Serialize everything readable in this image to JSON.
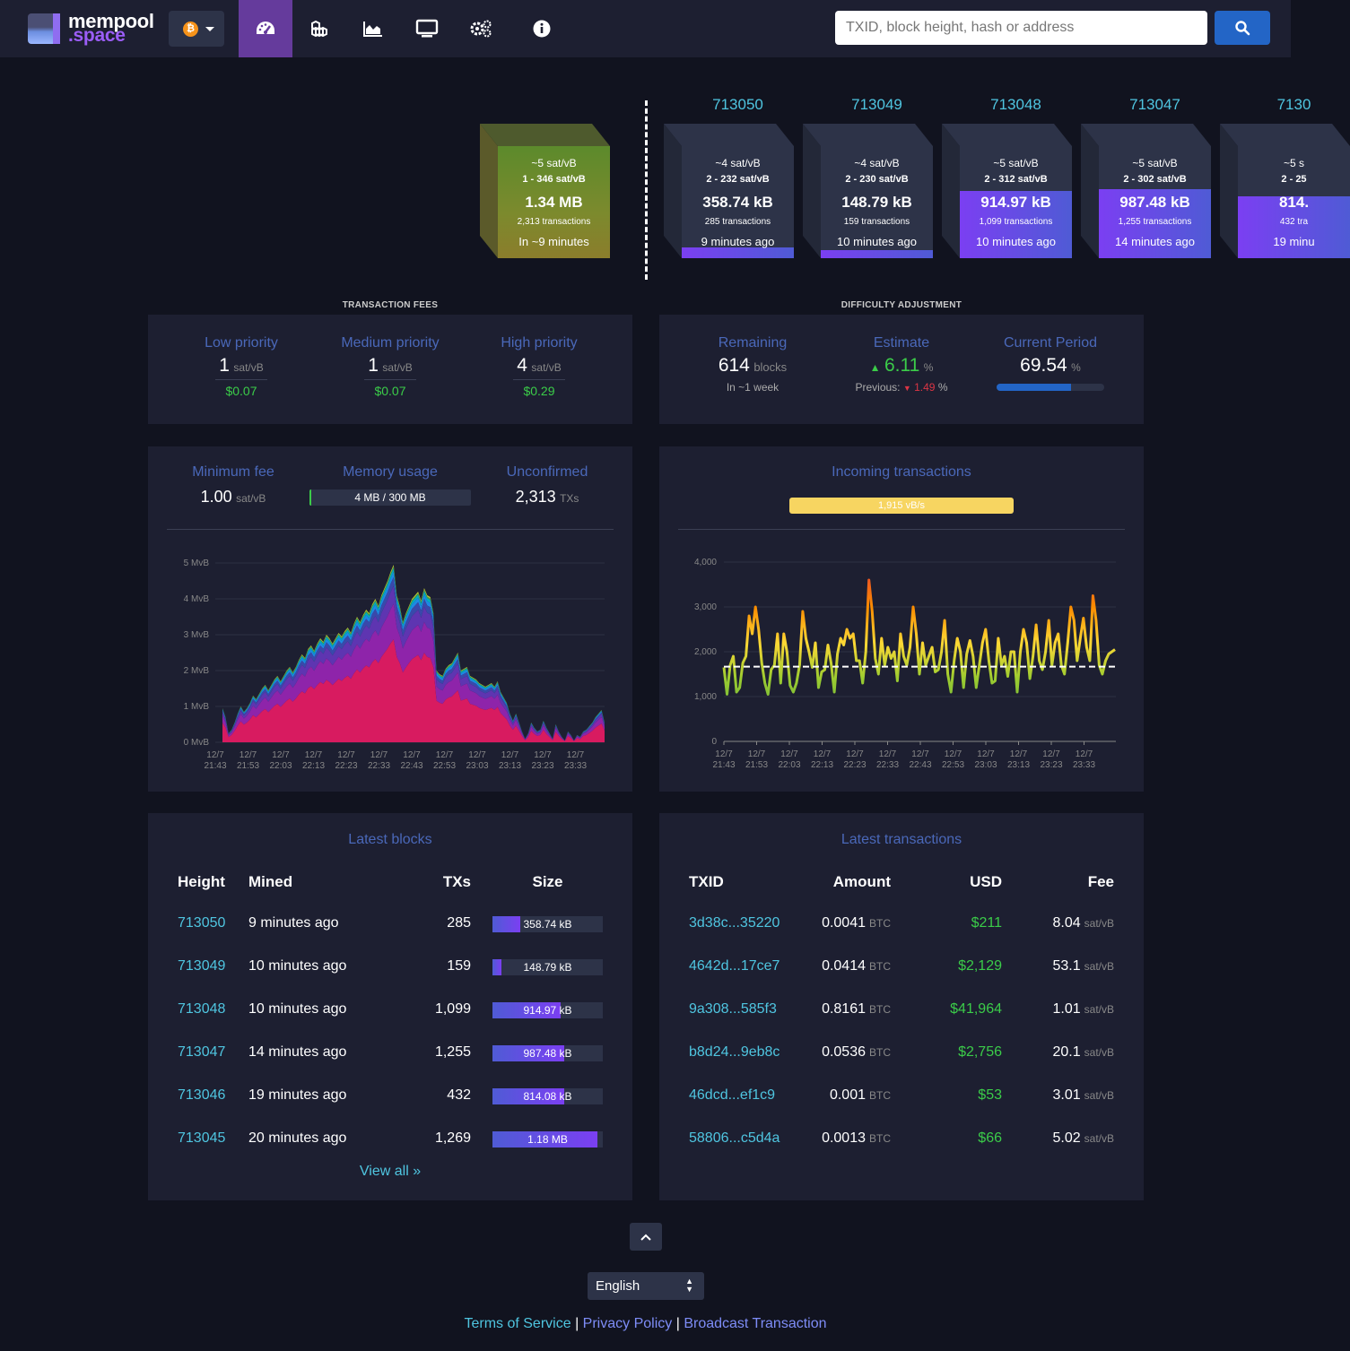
{
  "brand": {
    "name_top": "mempool",
    "name_bottom": ".space"
  },
  "network": {
    "icon": "bitcoin-icon",
    "symbol": "₿"
  },
  "nav": {
    "items": [
      {
        "name": "dashboard",
        "icon": "dashboard-icon",
        "active": true
      },
      {
        "name": "blocks",
        "icon": "blocks-icon",
        "active": false
      },
      {
        "name": "graphs",
        "icon": "chart-area-icon",
        "active": false
      },
      {
        "name": "tv",
        "icon": "tv-icon",
        "active": false
      },
      {
        "name": "api",
        "icon": "cogs-icon",
        "active": false
      },
      {
        "name": "about",
        "icon": "info-circle-icon",
        "active": false
      }
    ]
  },
  "search": {
    "placeholder": "TXID, block height, hash or address",
    "button_icon": "search-icon"
  },
  "mempool_block": {
    "fee": "~5 sat/vB",
    "range": "1 - 346 sat/vB",
    "size": "1.34 MB",
    "txs": "2,313 transactions",
    "eta": "In ~9 minutes"
  },
  "blocks": [
    {
      "height": "713050",
      "fee": "~4 sat/vB",
      "range": "2 - 232 sat/vB",
      "size": "358.74 kB",
      "txs": "285 transactions",
      "time": "9 minutes ago",
      "fill": 0.1
    },
    {
      "height": "713049",
      "fee": "~4 sat/vB",
      "range": "2 - 230 sat/vB",
      "size": "148.79 kB",
      "txs": "159 transactions",
      "time": "10 minutes ago",
      "fill": 0.07
    },
    {
      "height": "713048",
      "fee": "~5 sat/vB",
      "range": "2 - 312 sat/vB",
      "size": "914.97 kB",
      "txs": "1,099 transactions",
      "time": "10 minutes ago",
      "fill": 0.6
    },
    {
      "height": "713047",
      "fee": "~5 sat/vB",
      "range": "2 - 302 sat/vB",
      "size": "987.48 kB",
      "txs": "1,255 transactions",
      "time": "14 minutes ago",
      "fill": 0.62
    },
    {
      "height": "7130",
      "fee": "~5 s",
      "range": "2 - 25",
      "size": "814.",
      "txs": "432 tra",
      "time": "19 minu",
      "fill": 0.55
    }
  ],
  "fees": {
    "title": "TRANSACTION FEES",
    "low": {
      "label": "Low priority",
      "value": "1",
      "unit": "sat/vB",
      "fiat": "$0.07"
    },
    "medium": {
      "label": "Medium priority",
      "value": "1",
      "unit": "sat/vB",
      "fiat": "$0.07"
    },
    "high": {
      "label": "High priority",
      "value": "4",
      "unit": "sat/vB",
      "fiat": "$0.29"
    }
  },
  "difficulty": {
    "title": "DIFFICULTY ADJUSTMENT",
    "remaining": {
      "label": "Remaining",
      "value": "614",
      "unit": "blocks",
      "sub": "In ~1 week"
    },
    "estimate": {
      "label": "Estimate",
      "value": "6.11",
      "unit": "%",
      "prev_label": "Previous:",
      "prev_value": "1.49",
      "prev_unit": "%"
    },
    "current": {
      "label": "Current Period",
      "value": "69.54",
      "unit": "%",
      "progress": 0.6954
    }
  },
  "mempool_stats": {
    "min_fee": {
      "label": "Minimum fee",
      "value": "1.00",
      "unit": "sat/vB"
    },
    "memory": {
      "label": "Memory usage",
      "value": "4 MB / 300 MB",
      "fraction": 0.013
    },
    "unconfirmed": {
      "label": "Unconfirmed",
      "value": "2,313",
      "unit": "TXs"
    }
  },
  "incoming": {
    "label": "Incoming transactions",
    "rate": "1,915 vB/s",
    "fraction": 1.0
  },
  "chart_data": [
    {
      "type": "area",
      "stacked": true,
      "ylabel_ticks": [
        "0 MvB",
        "1 MvB",
        "2 MvB",
        "3 MvB",
        "4 MvB",
        "5 MvB"
      ],
      "ylim": [
        0,
        5
      ],
      "x_ticks": [
        "12/7 21:43",
        "12/7 21:53",
        "12/7 22:03",
        "12/7 22:13",
        "12/7 22:23",
        "12/7 22:33",
        "12/7 22:43",
        "12/7 22:53",
        "12/7 23:03",
        "12/7 23:13",
        "12/7 23:23",
        "12/7 23:33"
      ],
      "x": [
        0,
        1,
        2,
        3,
        4,
        5,
        6,
        7,
        8,
        9,
        10,
        11,
        12,
        13,
        14,
        15,
        16,
        17,
        18,
        19,
        20,
        21,
        22,
        23,
        24,
        25,
        26,
        27,
        28,
        29,
        30,
        31,
        32,
        33,
        34,
        35,
        36,
        37,
        38,
        39,
        40,
        41,
        42,
        43,
        44,
        45,
        46,
        47,
        48,
        49,
        50,
        51,
        52,
        53,
        54,
        55,
        56,
        57,
        58,
        59,
        60,
        61,
        62,
        63,
        64,
        65,
        66,
        67,
        68,
        69,
        70,
        71,
        72,
        73,
        74,
        75,
        76,
        77,
        78,
        79,
        80,
        81,
        82,
        83,
        84,
        85,
        86,
        87,
        88,
        89,
        90,
        91,
        92,
        93,
        94,
        95,
        96,
        97,
        98,
        99,
        100,
        101,
        102,
        103,
        104,
        105,
        106,
        107,
        108,
        109,
        110,
        111,
        112,
        113,
        114,
        115,
        116,
        117,
        118,
        119,
        120,
        121,
        122,
        123,
        124,
        125
      ],
      "total": [
        0.95,
        0.7,
        0.25,
        0.35,
        0.55,
        0.8,
        1.0,
        0.85,
        0.95,
        1.1,
        1.3,
        1.2,
        1.35,
        1.5,
        1.6,
        1.45,
        1.6,
        1.75,
        1.85,
        1.7,
        1.85,
        2.0,
        2.1,
        1.95,
        2.1,
        2.3,
        2.45,
        2.35,
        2.6,
        2.7,
        2.55,
        2.75,
        2.9,
        2.8,
        3.0,
        2.9,
        2.75,
        2.9,
        3.05,
        2.95,
        3.1,
        3.2,
        3.05,
        3.3,
        3.5,
        3.35,
        3.55,
        3.7,
        3.6,
        3.85,
        4.0,
        3.8,
        4.1,
        4.3,
        4.5,
        4.75,
        4.95,
        4.1,
        3.8,
        3.35,
        3.6,
        3.8,
        4.0,
        4.1,
        4.2,
        3.95,
        4.3,
        4.1,
        4.05,
        3.6,
        2.0,
        1.9,
        1.85,
        2.05,
        2.15,
        2.2,
        2.35,
        2.5,
        2.0,
        2.05,
        2.1,
        1.85,
        1.8,
        1.75,
        1.65,
        1.6,
        1.55,
        1.6,
        1.65,
        1.55,
        1.7,
        1.4,
        1.25,
        1.1,
        0.8,
        0.6,
        0.8,
        0.55,
        0.3,
        0.1,
        0.25,
        0.55,
        0.4,
        0.3,
        0.35,
        0.6,
        0.4,
        0.25,
        0.1,
        0.5,
        0.3,
        0.15,
        0.05,
        0.3,
        0.2,
        0.05,
        0.2,
        0.15,
        0.3,
        0.35,
        0.45,
        0.55,
        0.7,
        0.8,
        0.9,
        0.55
      ],
      "series": [
        {
          "color": "#d81b60",
          "share": 0.58
        },
        {
          "color": "#8e24aa",
          "share": 0.2
        },
        {
          "color": "#5e35b1",
          "share": 0.1
        },
        {
          "color": "#3949ab",
          "share": 0.05
        },
        {
          "color": "#1e88e5",
          "share": 0.03
        },
        {
          "color": "#00acc1",
          "share": 0.02
        },
        {
          "color": "#43a047",
          "share": 0.01
        },
        {
          "color": "#c0ca33",
          "share": 0.01
        }
      ]
    },
    {
      "type": "line",
      "ylabel_ticks": [
        "0",
        "1,000",
        "2,000",
        "3,000",
        "4,000"
      ],
      "ylim": [
        0,
        4000
      ],
      "x_ticks": [
        "12/7 21:43",
        "12/7 21:53",
        "12/7 22:03",
        "12/7 22:13",
        "12/7 22:23",
        "12/7 22:33",
        "12/7 22:43",
        "12/7 22:53",
        "12/7 23:03",
        "12/7 23:13",
        "12/7 23:23",
        "12/7 23:33"
      ],
      "reference_line": 1667,
      "values": [
        1650,
        1050,
        1700,
        1900,
        1100,
        1200,
        1750,
        1900,
        2800,
        2400,
        3000,
        2500,
        1750,
        1300,
        1050,
        1600,
        1700,
        2400,
        1300,
        2400,
        2000,
        1250,
        1100,
        1300,
        1700,
        2900,
        2300,
        2000,
        1650,
        2200,
        1200,
        1550,
        1600,
        2150,
        1750,
        1100,
        1950,
        2300,
        2150,
        2500,
        2300,
        2400,
        1800,
        1800,
        1300,
        2000,
        3600,
        2900,
        1850,
        1500,
        2300,
        1700,
        2100,
        1850,
        2000,
        1350,
        2400,
        1900,
        1700,
        2100,
        3000,
        2400,
        1500,
        2200,
        1700,
        1900,
        2100,
        1550,
        1600,
        2000,
        2700,
        1500,
        1100,
        1800,
        2300,
        2000,
        1200,
        1950,
        2250,
        1900,
        1200,
        1700,
        2200,
        2500,
        1800,
        1300,
        1350,
        2300,
        1700,
        1900,
        1450,
        2000,
        2000,
        1100,
        2000,
        2500,
        2200,
        1400,
        1900,
        2600,
        1800,
        1600,
        2000,
        2700,
        1700,
        2200,
        2400,
        1700,
        1500,
        2200,
        3000,
        2700,
        1800,
        2300,
        2750,
        2100,
        1800,
        3250,
        2700,
        1700,
        1500,
        1800,
        1950,
        2000,
        2050
      ]
    }
  ],
  "latest_blocks": {
    "title": "Latest blocks",
    "headers": {
      "height": "Height",
      "mined": "Mined",
      "txs": "TXs",
      "size": "Size"
    },
    "rows": [
      {
        "height": "713050",
        "mined": "9 minutes ago",
        "txs": "285",
        "size": "358.74 kB",
        "fill": 0.25
      },
      {
        "height": "713049",
        "mined": "10 minutes ago",
        "txs": "159",
        "size": "148.79 kB",
        "fill": 0.08
      },
      {
        "height": "713048",
        "mined": "10 minutes ago",
        "txs": "1,099",
        "size": "914.97 kB",
        "fill": 0.62
      },
      {
        "height": "713047",
        "mined": "14 minutes ago",
        "txs": "1,255",
        "size": "987.48 kB",
        "fill": 0.65
      },
      {
        "height": "713046",
        "mined": "19 minutes ago",
        "txs": "432",
        "size": "814.08 kB",
        "fill": 0.65
      },
      {
        "height": "713045",
        "mined": "20 minutes ago",
        "txs": "1,269",
        "size": "1.18 MB",
        "fill": 0.95
      }
    ],
    "view_all": "View all »"
  },
  "latest_transactions": {
    "title": "Latest transactions",
    "headers": {
      "txid": "TXID",
      "amount": "Amount",
      "usd": "USD",
      "fee": "Fee"
    },
    "rows": [
      {
        "txid": "3d38c...35220",
        "amount": "0.0041",
        "amount_unit": "BTC",
        "usd": "$211",
        "fee": "8.04",
        "fee_unit": "sat/vB"
      },
      {
        "txid": "4642d...17ce7",
        "amount": "0.0414",
        "amount_unit": "BTC",
        "usd": "$2,129",
        "fee": "53.1",
        "fee_unit": "sat/vB"
      },
      {
        "txid": "9a308...585f3",
        "amount": "0.8161",
        "amount_unit": "BTC",
        "usd": "$41,964",
        "fee": "1.01",
        "fee_unit": "sat/vB"
      },
      {
        "txid": "b8d24...9eb8c",
        "amount": "0.0536",
        "amount_unit": "BTC",
        "usd": "$2,756",
        "fee": "20.1",
        "fee_unit": "sat/vB"
      },
      {
        "txid": "46dcd...ef1c9",
        "amount": "0.001",
        "amount_unit": "BTC",
        "usd": "$53",
        "fee": "3.01",
        "fee_unit": "sat/vB"
      },
      {
        "txid": "58806...c5d4a",
        "amount": "0.0013",
        "amount_unit": "BTC",
        "usd": "$66",
        "fee": "5.02",
        "fee_unit": "sat/vB"
      }
    ]
  },
  "footer": {
    "language": "English",
    "links": [
      "Terms of Service",
      "Privacy Policy",
      "Broadcast Transaction"
    ],
    "separator": "|"
  }
}
